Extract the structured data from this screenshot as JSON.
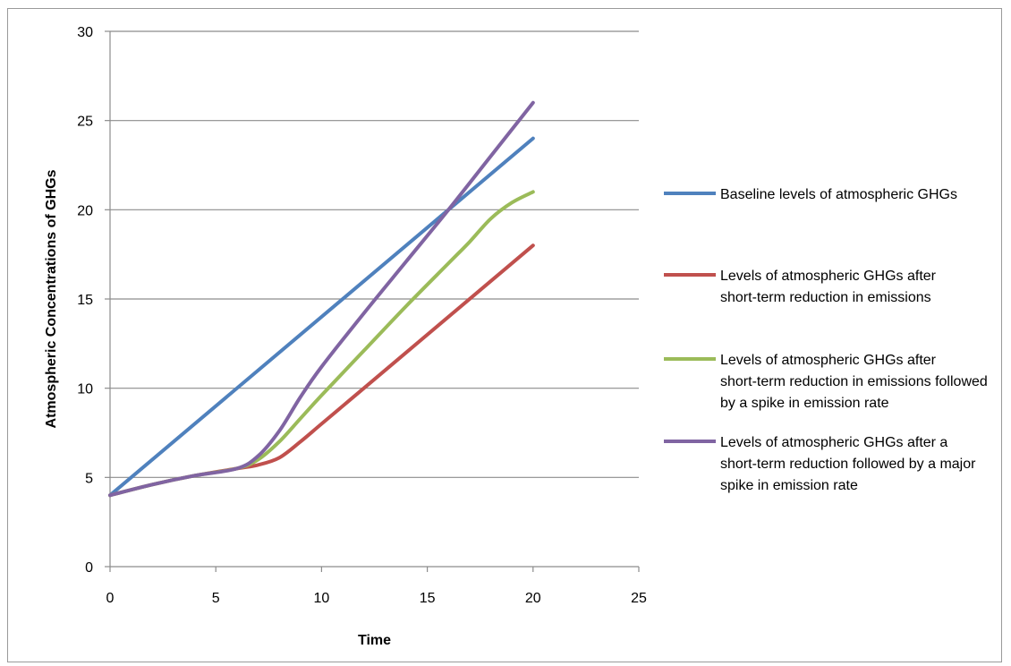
{
  "chart_data": {
    "type": "line",
    "title": "",
    "xlabel": "Time",
    "ylabel": "Atmospheric Concentrations of GHGs",
    "xlim": [
      0,
      25
    ],
    "ylim": [
      0,
      30
    ],
    "x_ticks": [
      0,
      5,
      10,
      15,
      20,
      25
    ],
    "y_ticks": [
      0,
      5,
      10,
      15,
      20,
      25,
      30
    ],
    "grid": "horizontal",
    "legend_position": "right",
    "series": [
      {
        "name": "Baseline levels of atmospheric GHGs",
        "color": "#4f81bd",
        "points": [
          [
            0,
            4
          ],
          [
            20,
            24
          ]
        ]
      },
      {
        "name": "Levels of atmospheric GHGs after short-term reduction in emissions",
        "color": "#c0504d",
        "points": [
          [
            0,
            4
          ],
          [
            2,
            4.6
          ],
          [
            4,
            5.1
          ],
          [
            6,
            5.5
          ],
          [
            7,
            5.7
          ],
          [
            8,
            6.1
          ],
          [
            9,
            7.0
          ],
          [
            10,
            8.0
          ],
          [
            12,
            10.0
          ],
          [
            14,
            12.0
          ],
          [
            16,
            14.0
          ],
          [
            18,
            16.0
          ],
          [
            20,
            18.0
          ]
        ]
      },
      {
        "name": "Levels of atmospheric GHGs after short-term reduction in emissions followed by a spike in emission rate",
        "color": "#9bbb59",
        "points": [
          [
            0,
            4
          ],
          [
            2,
            4.6
          ],
          [
            4,
            5.1
          ],
          [
            6,
            5.5
          ],
          [
            7,
            6.0
          ],
          [
            8,
            7.0
          ],
          [
            9,
            8.3
          ],
          [
            10,
            9.6
          ],
          [
            12,
            12.1
          ],
          [
            14,
            14.6
          ],
          [
            16,
            17.0
          ],
          [
            17,
            18.2
          ],
          [
            18,
            19.5
          ],
          [
            19,
            20.4
          ],
          [
            20,
            21.0
          ]
        ]
      },
      {
        "name": "Levels of atmospheric GHGs after a short-term reduction followed by a major spike in emission rate",
        "color": "#8064a2",
        "points": [
          [
            0,
            4
          ],
          [
            2,
            4.6
          ],
          [
            4,
            5.1
          ],
          [
            6,
            5.5
          ],
          [
            7,
            6.2
          ],
          [
            8,
            7.6
          ],
          [
            9,
            9.5
          ],
          [
            10,
            11.2
          ],
          [
            12,
            14.2
          ],
          [
            14,
            17.1
          ],
          [
            16,
            20.0
          ],
          [
            18,
            23.0
          ],
          [
            20,
            26.0
          ]
        ]
      }
    ]
  }
}
